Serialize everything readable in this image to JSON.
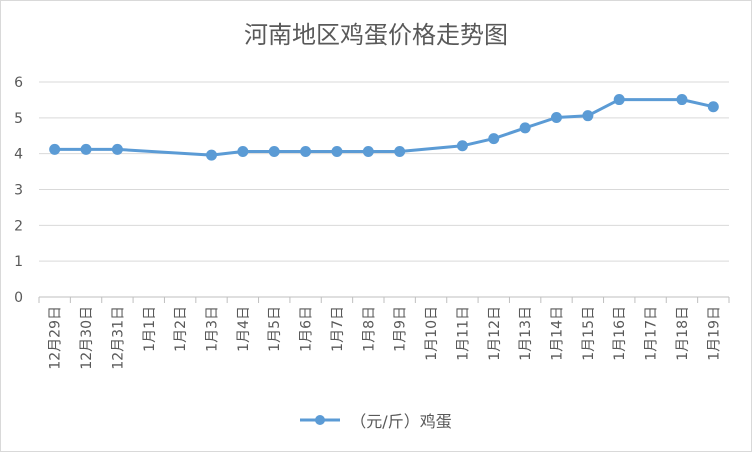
{
  "chart_data": {
    "type": "line",
    "title": "河南地区鸡蛋价格走势图",
    "categories": [
      "12月29日",
      "12月30日",
      "12月31日",
      "1月1日",
      "1月2日",
      "1月3日",
      "1月4日",
      "1月5日",
      "1月6日",
      "1月7日",
      "1月8日",
      "1月9日",
      "1月10日",
      "1月11日",
      "1月12日",
      "1月13日",
      "1月14日",
      "1月15日",
      "1月16日",
      "1月17日",
      "1月18日",
      "1月19日"
    ],
    "series": [
      {
        "name": "（元/斤）鸡蛋",
        "values": [
          4.12,
          4.12,
          4.12,
          null,
          null,
          3.96,
          4.06,
          4.06,
          4.06,
          4.06,
          4.06,
          4.06,
          null,
          4.22,
          4.42,
          4.72,
          5.01,
          5.06,
          5.51,
          null,
          5.51,
          5.31
        ],
        "color": "#5b9bd5"
      }
    ],
    "ylim": [
      0,
      6
    ],
    "yticks": [
      "0",
      "1",
      "2",
      "3",
      "4",
      "5",
      "6"
    ],
    "grid": true,
    "legend": "bottom",
    "xlabel": "",
    "ylabel": ""
  }
}
